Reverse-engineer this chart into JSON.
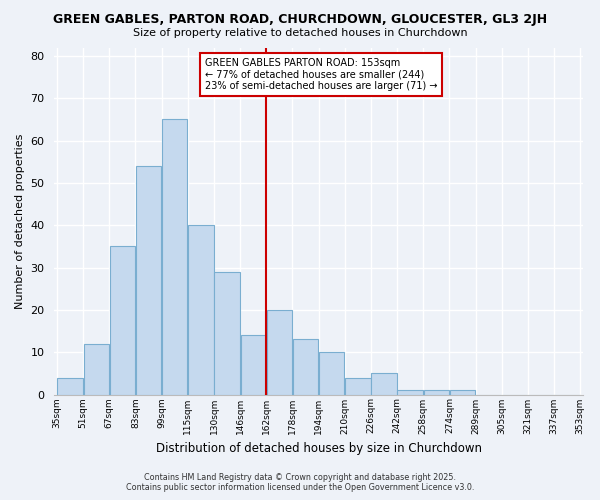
{
  "title": "GREEN GABLES, PARTON ROAD, CHURCHDOWN, GLOUCESTER, GL3 2JH",
  "subtitle": "Size of property relative to detached houses in Churchdown",
  "xlabel": "Distribution of detached houses by size in Churchdown",
  "ylabel": "Number of detached properties",
  "bar_values": [
    4,
    12,
    35,
    54,
    65,
    40,
    29,
    14,
    20,
    13,
    10,
    4,
    5,
    1,
    1,
    1,
    0,
    0,
    0,
    0
  ],
  "bin_labels": [
    "35sqm",
    "51sqm",
    "67sqm",
    "83sqm",
    "99sqm",
    "115sqm",
    "130sqm",
    "146sqm",
    "162sqm",
    "178sqm",
    "194sqm",
    "210sqm",
    "226sqm",
    "242sqm",
    "258sqm",
    "274sqm",
    "289sqm",
    "305sqm",
    "321sqm",
    "337sqm",
    "353sqm"
  ],
  "bar_color": "#c5d9ee",
  "bar_edge_color": "#7aaed0",
  "background_color": "#eef2f8",
  "grid_color": "#ffffff",
  "ref_line_color": "#cc0000",
  "ref_line_bar_index": 7.5,
  "legend_title": "GREEN GABLES PARTON ROAD: 153sqm",
  "legend_line1": "← 77% of detached houses are smaller (244)",
  "legend_line2": "23% of semi-detached houses are larger (71) →",
  "legend_box_color": "white",
  "legend_box_edge": "#cc0000",
  "ylim": [
    0,
    82
  ],
  "yticks": [
    0,
    10,
    20,
    30,
    40,
    50,
    60,
    70,
    80
  ],
  "footer1": "Contains HM Land Registry data © Crown copyright and database right 2025.",
  "footer2": "Contains public sector information licensed under the Open Government Licence v3.0."
}
